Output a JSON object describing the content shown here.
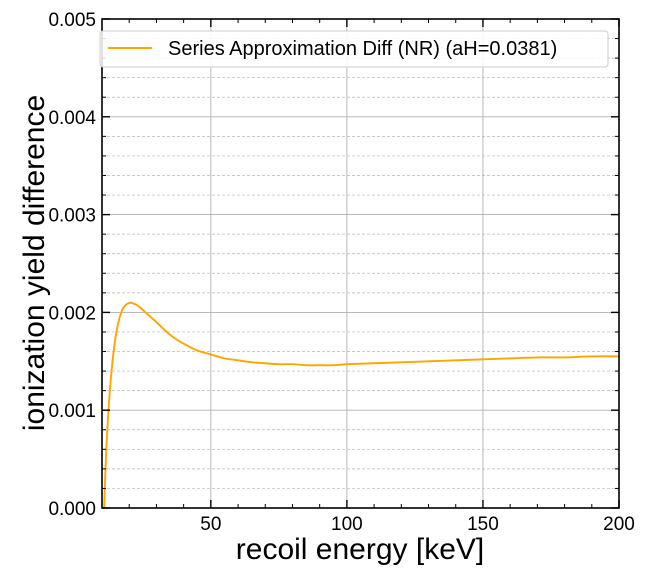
{
  "chart_data": {
    "type": "line",
    "xlabel": "recoil energy [keV]",
    "ylabel": "ionization yield difference",
    "xlim": [
      10,
      200
    ],
    "ylim": [
      0,
      0.005
    ],
    "x_ticks": [
      50,
      100,
      150,
      200
    ],
    "x_tick_labels": [
      "50",
      "100",
      "150",
      "200"
    ],
    "y_ticks": [
      0,
      0.001,
      0.002,
      0.003,
      0.004,
      0.005
    ],
    "y_tick_labels": [
      "0.000",
      "0.001",
      "0.002",
      "0.003",
      "0.004",
      "0.005"
    ],
    "grid": true,
    "minor_grid": true,
    "legend_position": "top",
    "series": [
      {
        "name": "Series Approximation Diff (NR) (aH=0.0381)",
        "color": "#ffa500",
        "x": [
          10.8,
          11.5,
          12.5,
          13.5,
          14.5,
          15.5,
          16.5,
          17.5,
          18.5,
          19.5,
          20.5,
          21.5,
          22.5,
          24,
          26,
          28,
          30,
          33,
          36,
          40,
          45,
          50,
          55,
          60,
          65,
          70,
          75,
          80,
          85,
          90,
          95,
          100,
          110,
          120,
          130,
          140,
          150,
          160,
          170,
          180,
          190,
          200
        ],
        "y": [
          0.0,
          0.00055,
          0.00105,
          0.0014,
          0.00165,
          0.00183,
          0.00195,
          0.00203,
          0.00207,
          0.00209,
          0.0021,
          0.00209,
          0.00208,
          0.00205,
          0.002,
          0.00195,
          0.0019,
          0.00182,
          0.00175,
          0.00168,
          0.00161,
          0.00157,
          0.00153,
          0.00151,
          0.00149,
          0.00148,
          0.00147,
          0.00147,
          0.00146,
          0.00146,
          0.00146,
          0.00147,
          0.00148,
          0.00149,
          0.0015,
          0.00151,
          0.00152,
          0.00153,
          0.00154,
          0.00154,
          0.00155,
          0.00155
        ]
      }
    ]
  }
}
